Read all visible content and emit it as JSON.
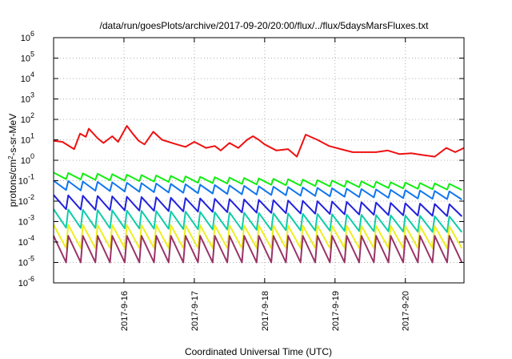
{
  "chart_data": {
    "type": "line",
    "title": "/data/run/goesPlots/archive/2017-09-20/20:00/flux/../flux/5daysMarsFluxes.txt",
    "xlabel": "Coordinated Universal Time (UTC)",
    "ylabel_parts": {
      "base": "protons/cm",
      "sup": "2",
      "rest": "-s-sr-MeV"
    },
    "y_scale": "log",
    "ylim": [
      1e-06,
      1000000.0
    ],
    "y_ticks": [
      {
        "value": 1e-06,
        "base": "10",
        "exp": "-6"
      },
      {
        "value": 1e-05,
        "base": "10",
        "exp": "-5"
      },
      {
        "value": 0.0001,
        "base": "10",
        "exp": "-4"
      },
      {
        "value": 0.001,
        "base": "10",
        "exp": "-3"
      },
      {
        "value": 0.01,
        "base": "10",
        "exp": "-2"
      },
      {
        "value": 0.1,
        "base": "10",
        "exp": "-1"
      },
      {
        "value": 1.0,
        "base": "10",
        "exp": "0"
      },
      {
        "value": 10.0,
        "base": "10",
        "exp": "1"
      },
      {
        "value": 100.0,
        "base": "10",
        "exp": "2"
      },
      {
        "value": 1000.0,
        "base": "10",
        "exp": "3"
      },
      {
        "value": 10000.0,
        "base": "10",
        "exp": "4"
      },
      {
        "value": 100000.0,
        "base": "10",
        "exp": "5"
      },
      {
        "value": 1000000.0,
        "base": "10",
        "exp": "6"
      }
    ],
    "xlim": [
      "2017-09-15T00:00",
      "2017-09-20T20:00"
    ],
    "x_ticks": [
      {
        "value": "2017-09-16T00:00",
        "label": "2017-9-16"
      },
      {
        "value": "2017-09-17T00:00",
        "label": "2017-9-17"
      },
      {
        "value": "2017-09-18T00:00",
        "label": "2017-9-18"
      },
      {
        "value": "2017-09-19T00:00",
        "label": "2017-9-19"
      },
      {
        "value": "2017-09-20T00:00",
        "label": "2017-9-20"
      }
    ],
    "grid": true,
    "legend": "none",
    "series": [
      {
        "color": "#ee1111",
        "x": [
          "2017-09-15T00:00",
          "2017-09-15T03:00",
          "2017-09-15T07:00",
          "2017-09-15T09:00",
          "2017-09-15T11:00",
          "2017-09-15T12:00",
          "2017-09-15T15:00",
          "2017-09-15T17:00",
          "2017-09-15T20:00",
          "2017-09-15T22:00",
          "2017-09-16T01:00",
          "2017-09-16T03:00",
          "2017-09-16T05:00",
          "2017-09-16T07:00",
          "2017-09-16T10:00",
          "2017-09-16T13:00",
          "2017-09-16T18:00",
          "2017-09-16T21:00",
          "2017-09-17T00:00",
          "2017-09-17T04:00",
          "2017-09-17T07:00",
          "2017-09-17T09:00",
          "2017-09-17T12:00",
          "2017-09-17T15:00",
          "2017-09-17T18:00",
          "2017-09-17T20:00",
          "2017-09-17T22:00",
          "2017-09-18T00:00",
          "2017-09-18T04:00",
          "2017-09-18T08:00",
          "2017-09-18T11:00",
          "2017-09-18T14:00",
          "2017-09-18T18:00",
          "2017-09-18T22:00",
          "2017-09-19T02:00",
          "2017-09-19T06:00",
          "2017-09-19T10:00",
          "2017-09-19T14:00",
          "2017-09-19T18:00",
          "2017-09-19T22:00",
          "2017-09-20T02:00",
          "2017-09-20T06:00",
          "2017-09-20T10:00",
          "2017-09-20T14:00",
          "2017-09-20T17:00",
          "2017-09-20T20:00"
        ],
        "y": [
          9,
          8,
          3.5,
          20,
          14,
          35,
          12,
          7,
          15,
          8,
          48,
          20,
          9,
          6,
          25,
          10,
          6,
          4.5,
          8,
          4,
          5,
          3,
          7,
          4,
          10,
          15,
          10,
          6,
          3,
          3.5,
          1.5,
          18,
          10,
          5,
          3.5,
          2.5,
          2.5,
          2.5,
          3,
          2,
          2.2,
          1.8,
          1.5,
          4,
          2.5,
          4
        ]
      },
      {
        "color": "#11ee11",
        "sawtooth": true,
        "peaks": 28,
        "y_start_high": 0.25,
        "y_start_low": 0.12,
        "y_end_high": 0.07,
        "y_end_low": 0.035
      },
      {
        "color": "#1177ee",
        "sawtooth": true,
        "peaks": 28,
        "y_start_high": 0.1,
        "y_start_low": 0.035,
        "y_end_high": 0.03,
        "y_end_low": 0.012
      },
      {
        "color": "#2222dd",
        "sawtooth": true,
        "peaks": 28,
        "y_start_high": 0.02,
        "y_start_low": 0.004,
        "y_end_high": 0.007,
        "y_end_low": 0.0018
      },
      {
        "color": "#11ccaa",
        "sawtooth": true,
        "peaks": 28,
        "y_start_high": 0.004,
        "y_start_low": 0.0005,
        "y_end_high": 0.0018,
        "y_end_low": 0.0003
      },
      {
        "color": "#eeee22",
        "sawtooth": true,
        "peaks": 28,
        "y_start_high": 0.0007,
        "y_start_low": 5e-05,
        "y_end_high": 0.0006,
        "y_end_low": 5e-05
      },
      {
        "color": "#993366",
        "sawtooth": true,
        "peaks": 28,
        "y_start_high": 0.0002,
        "y_start_low": 1e-05,
        "y_end_high": 0.0002,
        "y_end_low": 1e-05
      }
    ]
  }
}
